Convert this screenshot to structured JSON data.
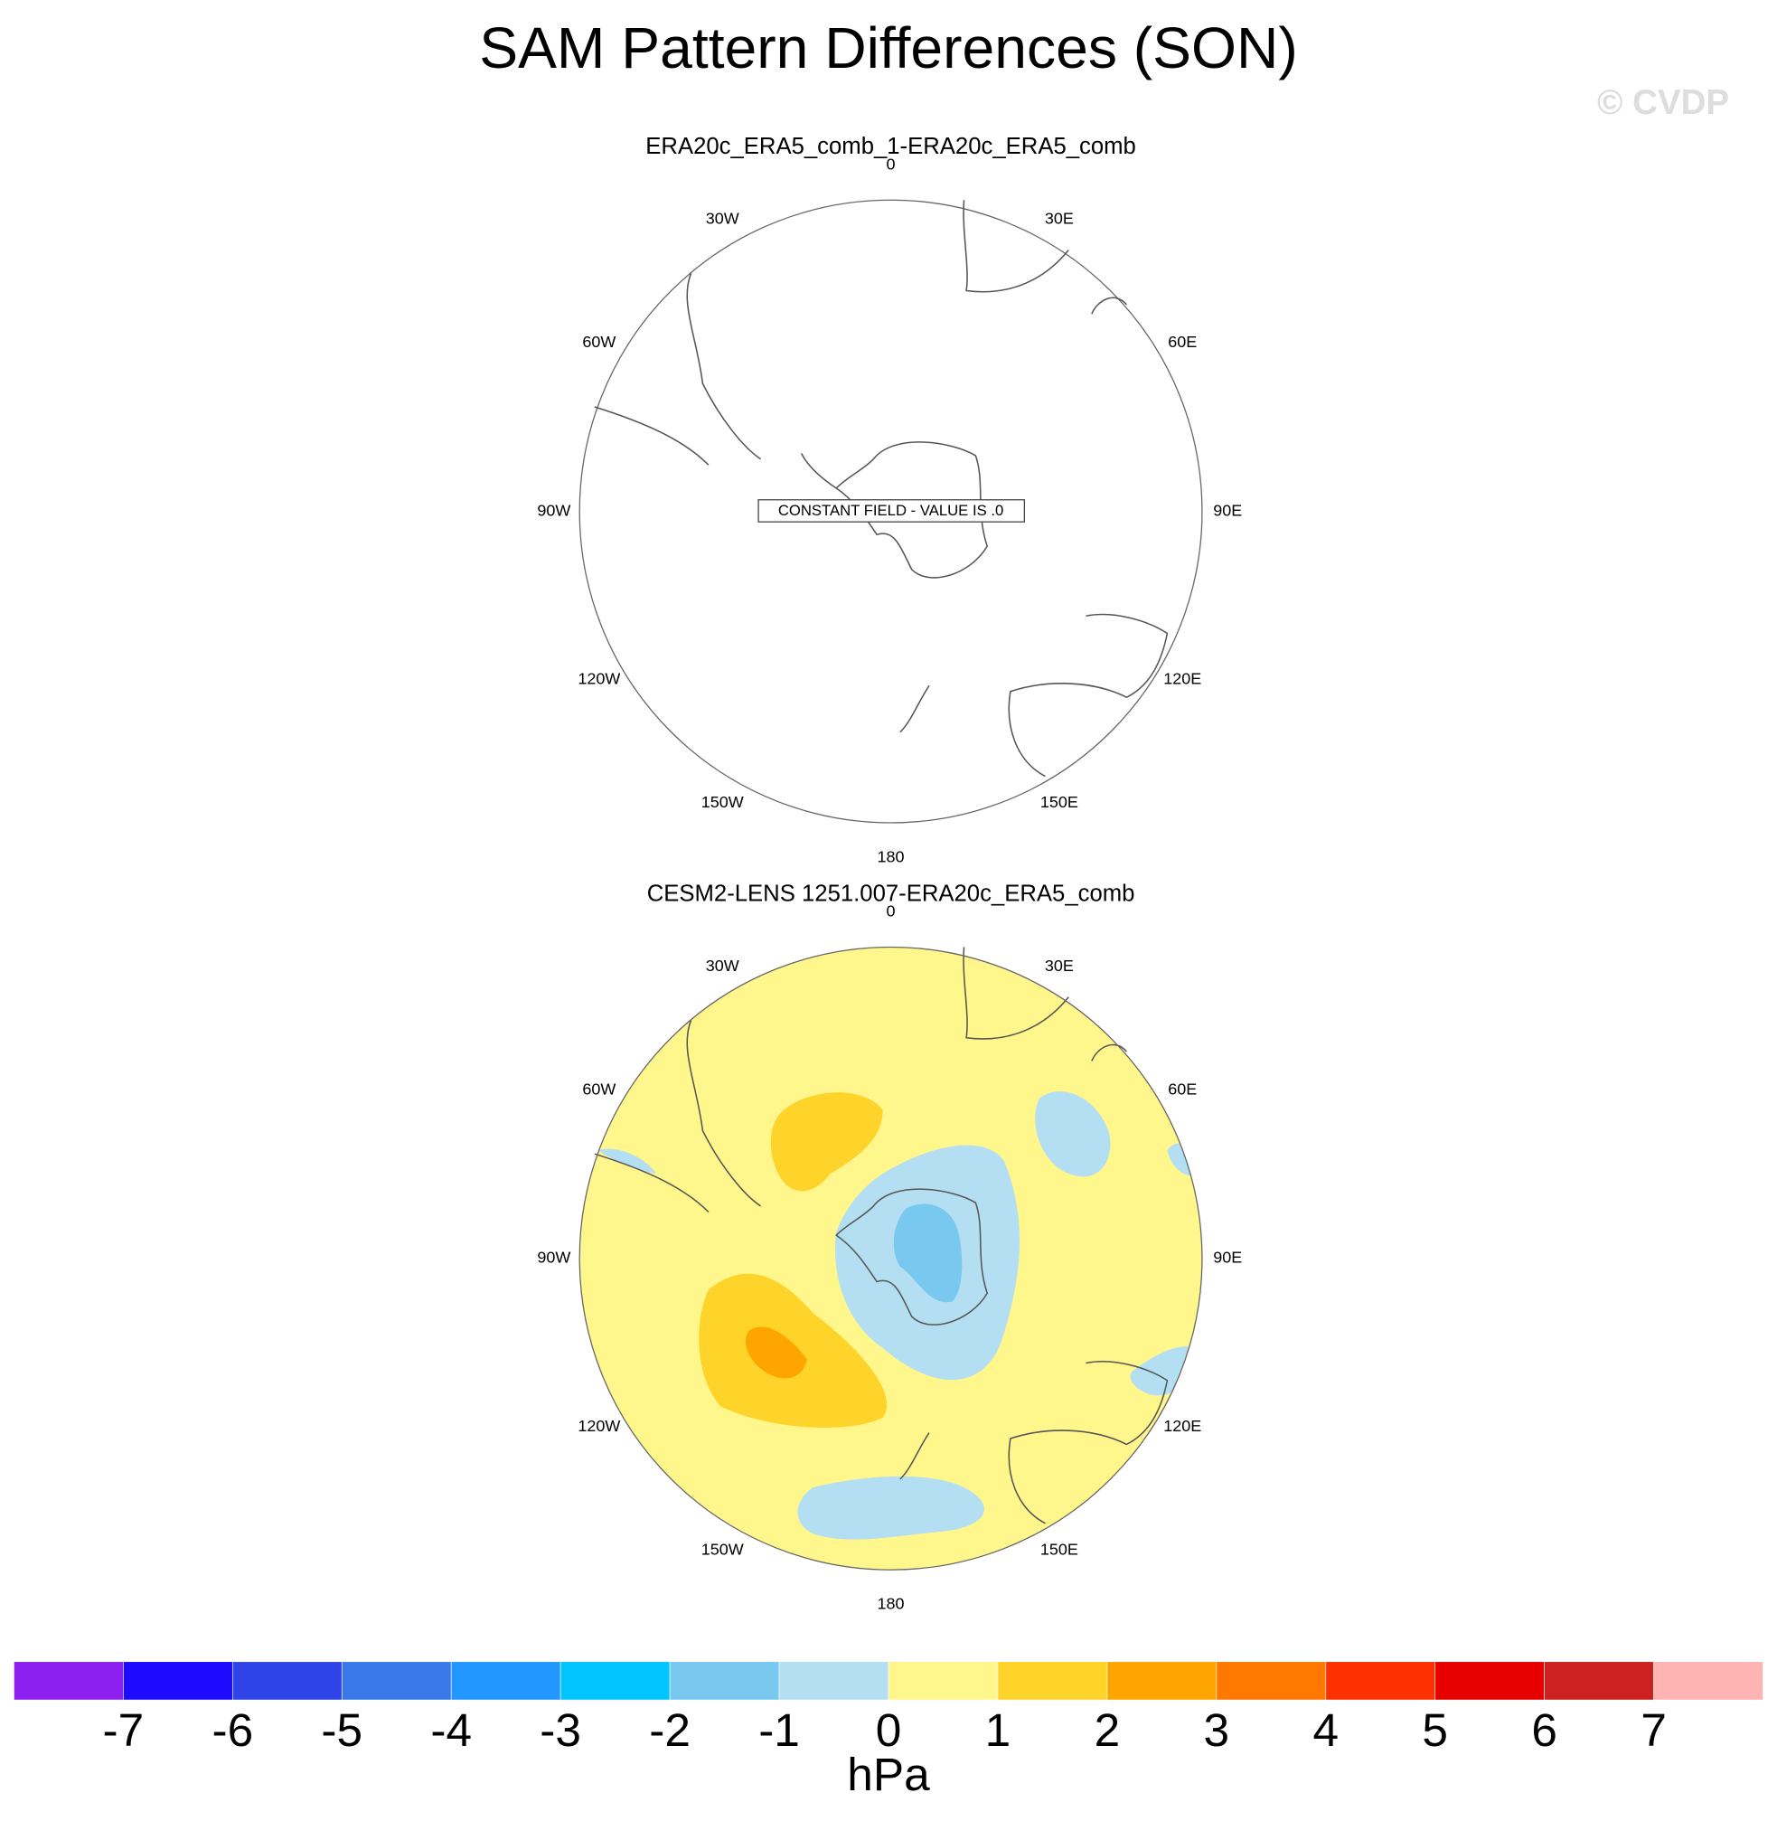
{
  "title": "SAM Pattern Differences (SON)",
  "watermark": "© CVDP",
  "panels": [
    {
      "title": "ERA20c_ERA5_comb_1-ERA20c_ERA5_comb",
      "note": "CONSTANT FIELD - VALUE IS .0"
    },
    {
      "title": "CESM2-LENS 1251.007-ERA20c_ERA5_comb"
    }
  ],
  "lon_labels": [
    "0",
    "30E",
    "60E",
    "90E",
    "120E",
    "150E",
    "180",
    "150W",
    "120W",
    "90W",
    "60W",
    "30W"
  ],
  "colorbar": {
    "levels": [
      -7,
      -6,
      -5,
      -4,
      -3,
      -2,
      -1,
      0,
      1,
      2,
      3,
      4,
      5,
      6,
      7
    ],
    "colors": [
      "#8c1ff0",
      "#1e0bff",
      "#2f44e8",
      "#3a78ea",
      "#2197ff",
      "#00c5ff",
      "#78c8f0",
      "#b4dff2",
      "#fff78c",
      "#ffd42a",
      "#ffa500",
      "#ff7800",
      "#ff3000",
      "#e80000",
      "#cd2020",
      "#ffb4b4"
    ],
    "unit": "hPa"
  }
}
